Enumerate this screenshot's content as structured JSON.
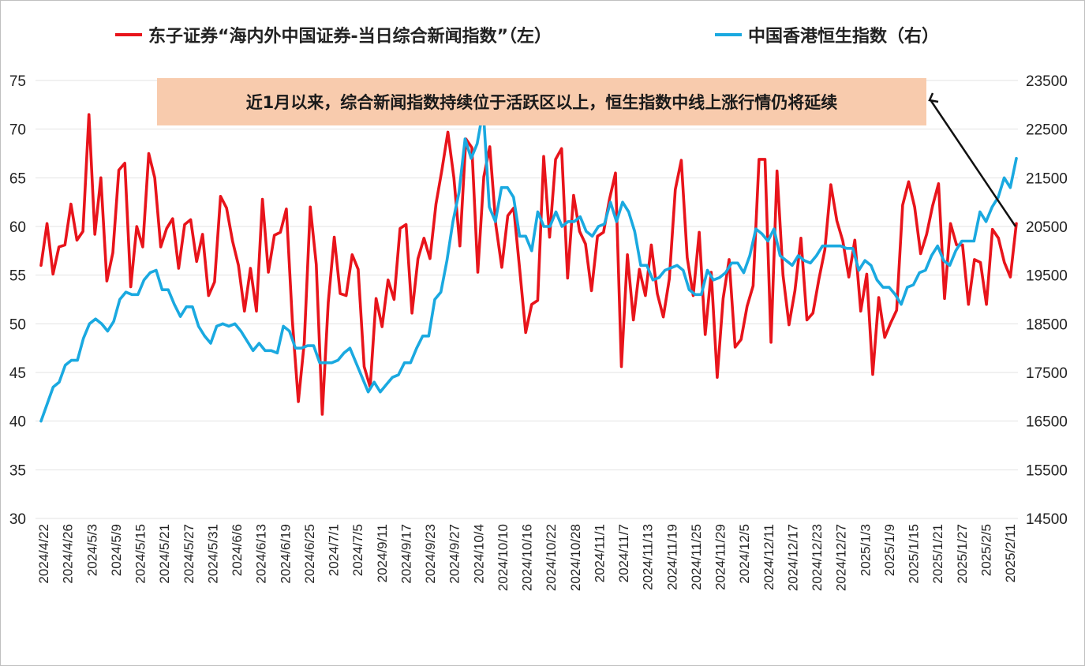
{
  "legend": {
    "series_left": "东子证券“海内外中国证券-当日综合新闻指数”（左）",
    "series_right": "中国香港恒生指数（右）"
  },
  "annotation": "近1月以来，综合新闻指数持续位于活跃区以上，恒生指数中线上涨行情仍将延续",
  "chart_data": {
    "type": "line",
    "colors": {
      "left_series": "#e8141b",
      "right_series": "#1aa9e0",
      "annotation_bg": "#f8cbad"
    },
    "grid": "horizontal",
    "legend_position": "top",
    "y_left": {
      "ylim": [
        30,
        75
      ],
      "ticks": [
        30,
        35,
        40,
        45,
        50,
        55,
        60,
        65,
        70,
        75
      ]
    },
    "y_right": {
      "ylim": [
        14500,
        23500
      ],
      "ticks": [
        14500,
        15500,
        16500,
        17500,
        18500,
        19500,
        20500,
        21500,
        22500,
        23500
      ]
    },
    "x_tick_labels": [
      "2024/4/22",
      "2024/4/26",
      "2024/5/3",
      "2024/5/9",
      "2024/5/15",
      "2024/5/21",
      "2024/5/27",
      "2024/5/31",
      "2024/6/6",
      "2024/6/13",
      "2024/6/19",
      "2024/6/25",
      "2024/7/1",
      "2024/7/5",
      "2024/9/11",
      "2024/9/17",
      "2024/9/23",
      "2024/9/27",
      "2024/10/4",
      "2024/10/10",
      "2024/10/16",
      "2024/10/22",
      "2024/10/28",
      "2024/11/1",
      "2024/11/7",
      "2024/11/13",
      "2024/11/19",
      "2024/11/25",
      "2024/11/29",
      "2024/12/5",
      "2024/12/11",
      "2024/12/17",
      "2024/12/23",
      "2024/12/27",
      "2025/1/3",
      "2025/1/9",
      "2025/1/15",
      "2025/1/21",
      "2025/1/27",
      "2025/2/5",
      "2025/2/11"
    ],
    "series": [
      {
        "axis": "left",
        "values": [
          56,
          60.3,
          55.1,
          57.9,
          58.1,
          62.3,
          58.6,
          59.5,
          71.5,
          59.2,
          65,
          54.4,
          57.3,
          65.8,
          66.5,
          53.8,
          60,
          57.9,
          67.5,
          65,
          57.9,
          59.8,
          60.8,
          55.7,
          60.2,
          60.7,
          56.4,
          59.2,
          52.9,
          54.3,
          63.1,
          61.9,
          58.5,
          56,
          51.3,
          55.7,
          51.3,
          62.8,
          55.3,
          59.1,
          59.4,
          61.8,
          50.3,
          42,
          48.1,
          62,
          56.1,
          40.7,
          52.2,
          58.9,
          53.1,
          52.9,
          57.1,
          55.6,
          45.6,
          43.5,
          52.6,
          49.7,
          54.5,
          52.5,
          59.8,
          60.2,
          51.1,
          56.7,
          58.8,
          56.7,
          62.3,
          65.8,
          69.7,
          65,
          58,
          69,
          68.1,
          55.3,
          65.1,
          68.2,
          60.2,
          55.8,
          61.1,
          61.9,
          55.6,
          49.1,
          52,
          52.4,
          67.2,
          58.9,
          66.9,
          68,
          54.7,
          63.2,
          59.5,
          58.2,
          53.4,
          59,
          59.4,
          62.8,
          65.5,
          45.6,
          57.1,
          50.4,
          55.6,
          52.9,
          58.1,
          53.1,
          50.7,
          54.6,
          63.8,
          66.8,
          56.8,
          52.9,
          59.4,
          48.9,
          55.3,
          44.5,
          52.6,
          56.6,
          47.6,
          48.4,
          51.8,
          53.9,
          66.9,
          66.9,
          48.1,
          65.7,
          55,
          49.9,
          53.4,
          58.8,
          50.4,
          51.1,
          54.6,
          57.6,
          64.3,
          60.6,
          58.5,
          54.8,
          58.6,
          51.3,
          55.1,
          44.8,
          52.7,
          48.6,
          50.1,
          51.4,
          62.2,
          64.6,
          62,
          57.2,
          59.2,
          62.1,
          64.4,
          52.6,
          60.3,
          58.1,
          58.1,
          52,
          56.6,
          56.3,
          52,
          59.7,
          58.8,
          56.3,
          54.8,
          60.3
        ]
      },
      {
        "axis": "right",
        "values": [
          16500,
          16850,
          17200,
          17300,
          17650,
          17750,
          17750,
          18200,
          18500,
          18600,
          18500,
          18350,
          18550,
          19000,
          19150,
          19100,
          19100,
          19400,
          19550,
          19600,
          19200,
          19200,
          18900,
          18650,
          18850,
          18850,
          18450,
          18250,
          18100,
          18450,
          18500,
          18450,
          18500,
          18350,
          18150,
          17950,
          18100,
          17950,
          17950,
          17900,
          18450,
          18350,
          18000,
          18000,
          18050,
          18050,
          17700,
          17700,
          17700,
          17750,
          17900,
          18000,
          17700,
          17400,
          17100,
          17300,
          17100,
          17250,
          17400,
          17450,
          17700,
          17700,
          18000,
          18250,
          18250,
          19000,
          19150,
          19800,
          20600,
          21200,
          22300,
          21900,
          22200,
          22900,
          20900,
          20600,
          21300,
          21300,
          21100,
          20300,
          20300,
          20000,
          20800,
          20500,
          20500,
          20800,
          20500,
          20600,
          20600,
          20700,
          20400,
          20300,
          20500,
          20550,
          21000,
          20600,
          21000,
          20800,
          20400,
          19700,
          19700,
          19400,
          19450,
          19600,
          19650,
          19700,
          19600,
          19200,
          19100,
          19100,
          19600,
          19400,
          19450,
          19550,
          19750,
          19750,
          19550,
          19900,
          20450,
          20350,
          20200,
          20450,
          19900,
          19800,
          19700,
          19900,
          19800,
          19750,
          19900,
          20100,
          20100,
          20100,
          20100,
          20050,
          20050,
          19600,
          19800,
          19700,
          19400,
          19250,
          19250,
          19100,
          18900,
          19250,
          19300,
          19550,
          19600,
          19900,
          20100,
          19800,
          19700,
          20000,
          20200,
          20200,
          20200,
          20800,
          20600,
          20900,
          21100,
          21500,
          21300,
          21900
        ]
      }
    ]
  }
}
